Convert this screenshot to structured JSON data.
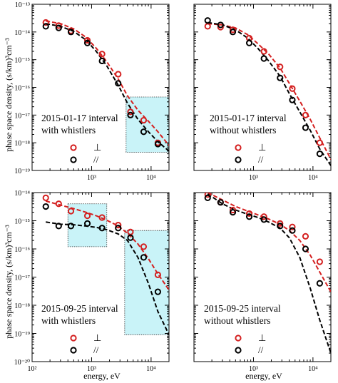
{
  "ylabel": "phase space density, (s/km)³cm⁻³",
  "xlabel": "energy, eV",
  "legend": {
    "perp": "⊥",
    "par": "//"
  },
  "colors": {
    "perp": "#d42020",
    "par": "#000000",
    "box": "#c9f3f8"
  },
  "chart_data": [
    {
      "type": "scatter",
      "annotation": [
        "2015-01-17 interval",
        "with whistlers"
      ],
      "xlim": [
        100,
        20000
      ],
      "ylim_exp": [
        -19,
        -13
      ],
      "xscale": "log",
      "yscale": "log",
      "x_ticks": [
        "10³",
        "10⁴"
      ],
      "y_ticks": [
        "10⁻¹⁴",
        "10⁻¹⁵",
        "10⁻¹⁶",
        "10⁻¹⁷",
        "10⁻¹⁸",
        "10⁻¹⁹"
      ],
      "y_top_tick": "10⁻¹³",
      "boxes": [
        {
          "x": [
            3800,
            20000
          ],
          "y": [
            4.5e-19,
            4.5e-17
          ]
        }
      ],
      "series": [
        {
          "key": "perp",
          "points": {
            "x": [
              170,
              280,
              450,
              850,
              1500,
              2800,
              4500,
              7500,
              13000
            ],
            "y": [
              2.2e-14,
              1.7e-14,
              1.1e-14,
              5e-15,
              1.6e-15,
              3e-16,
              1.3e-17,
              6.5e-18,
              1e-18
            ]
          },
          "fit": {
            "x": [
              170,
              300,
              500,
              800,
              1200,
              1800,
              2800,
              4000,
              6000,
              9000,
              13000,
              20000
            ],
            "y": [
              2.5e-14,
              2e-14,
              1.3e-14,
              6.5e-15,
              2.6e-15,
              8.5e-16,
              2e-16,
              5e-17,
              1.5e-17,
              6e-18,
              2.5e-18,
              8e-19
            ]
          }
        },
        {
          "key": "par",
          "points": {
            "x": [
              170,
              280,
              450,
              850,
              1500,
              2800,
              4500,
              7500,
              13000
            ],
            "y": [
              1.6e-14,
              1.4e-14,
              1e-14,
              4e-15,
              9e-16,
              1.4e-16,
              1e-17,
              2.5e-18,
              9e-19
            ]
          },
          "fit": {
            "x": [
              170,
              300,
              500,
              800,
              1200,
              1800,
              2800,
              4000,
              6000,
              9000,
              13000,
              20000
            ],
            "y": [
              2e-14,
              1.6e-14,
              1.05e-14,
              5.2e-15,
              2e-15,
              6e-16,
              1.2e-16,
              2.7e-17,
              7e-18,
              2.5e-18,
              1.1e-18,
              5e-19
            ]
          }
        }
      ]
    },
    {
      "type": "scatter",
      "annotation": [
        "2015-01-17 interval",
        "without whistlers"
      ],
      "xlim": [
        100,
        20000
      ],
      "ylim_exp": [
        -19,
        -13
      ],
      "xscale": "log",
      "yscale": "log",
      "x_ticks": [
        "10³",
        "10⁴"
      ],
      "y_ticks": [],
      "boxes": [],
      "series": [
        {
          "key": "perp",
          "points": {
            "x": [
              170,
              280,
              450,
              850,
              1500,
              2800,
              4500,
              7500,
              13000
            ],
            "y": [
              1.6e-14,
              1.5e-14,
              1.2e-14,
              6e-15,
              2e-15,
              5.5e-16,
              9e-17,
              1e-17,
              1e-18
            ]
          },
          "fit": {
            "x": [
              170,
              300,
              500,
              800,
              1200,
              1800,
              2800,
              4000,
              6000,
              9000,
              13000,
              20000
            ],
            "y": [
              2e-14,
              1.8e-14,
              1.4e-14,
              8e-15,
              3.7e-15,
              1.6e-15,
              5e-16,
              1.4e-16,
              3.2e-17,
              7e-18,
              1.5e-18,
              2.5e-19
            ]
          }
        },
        {
          "key": "par",
          "points": {
            "x": [
              170,
              280,
              450,
              850,
              1500,
              2800,
              4500,
              7500,
              13000
            ],
            "y": [
              2.6e-14,
              1.8e-14,
              1e-14,
              4e-15,
              1.1e-15,
              2.2e-16,
              3.5e-17,
              3.5e-18,
              4e-19
            ]
          },
          "fit": {
            "x": [
              170,
              300,
              500,
              800,
              1200,
              1800,
              2800,
              4000,
              6000,
              9000,
              13000,
              20000
            ],
            "y": [
              2.2e-14,
              1.8e-14,
              1.2e-14,
              6e-15,
              2.5e-15,
              9e-16,
              2.5e-16,
              6e-17,
              1.3e-17,
              2.8e-18,
              6e-19,
              1.5e-19
            ]
          }
        }
      ]
    },
    {
      "type": "scatter",
      "annotation": [
        "2015-09-25 interval",
        "with whistlers"
      ],
      "xlim": [
        100,
        20000
      ],
      "ylim_exp": [
        -20,
        -14
      ],
      "xscale": "log",
      "yscale": "log",
      "x_ticks": [
        "10²",
        "10³",
        "10⁴"
      ],
      "y_ticks": [
        "10⁻¹⁴",
        "10⁻¹⁵",
        "10⁻¹⁶",
        "10⁻¹⁷",
        "10⁻¹⁸",
        "10⁻¹⁹",
        "10⁻²⁰"
      ],
      "boxes": [
        {
          "x": [
            400,
            1800
          ],
          "y": [
            1.2e-16,
            4e-15
          ]
        },
        {
          "x": [
            3600,
            20000
          ],
          "y": [
            9e-20,
            4.5e-16
          ]
        }
      ],
      "series": [
        {
          "key": "perp",
          "points": {
            "x": [
              170,
              280,
              450,
              850,
              1500,
              2800,
              4500,
              7500,
              13000
            ],
            "y": [
              6.5e-15,
              4e-15,
              2.2e-15,
              1.5e-15,
              1.3e-15,
              7e-16,
              4e-16,
              1.2e-16,
              1.2e-17
            ]
          },
          "fit": {
            "x": [
              170,
              300,
              500,
              800,
              1200,
              1800,
              2800,
              4000,
              6000,
              9000,
              13000,
              20000
            ],
            "y": [
              5e-15,
              3.6e-15,
              2.7e-15,
              2e-15,
              1.5e-15,
              1.05e-15,
              6.5e-16,
              3.6e-16,
              1.5e-16,
              4.5e-17,
              1.3e-17,
              3.5e-18
            ]
          }
        },
        {
          "key": "par",
          "points": {
            "x": [
              170,
              280,
              450,
              850,
              1500,
              2800,
              4500,
              7500,
              13000
            ],
            "y": [
              3.2e-15,
              6.5e-16,
              6.5e-16,
              8e-16,
              5.5e-16,
              5.5e-16,
              2.5e-16,
              5e-17,
              3e-18
            ]
          },
          "fit": {
            "x": [
              170,
              300,
              500,
              800,
              1200,
              1800,
              2800,
              4000,
              6000,
              9000,
              13000,
              20000
            ],
            "y": [
              9e-16,
              7.5e-16,
              7.2e-16,
              6.5e-16,
              5.8e-16,
              4.8e-16,
              3.4e-16,
              2e-16,
              5e-17,
              6e-18,
              6e-19,
              9e-20
            ]
          }
        }
      ]
    },
    {
      "type": "scatter",
      "annotation": [
        "2015-09-25 interval",
        "without whistlers"
      ],
      "xlim": [
        100,
        20000
      ],
      "ylim_exp": [
        -20,
        -14
      ],
      "xscale": "log",
      "yscale": "log",
      "x_ticks": [
        "10³",
        "10⁴"
      ],
      "y_ticks": [],
      "boxes": [],
      "series": [
        {
          "key": "perp",
          "points": {
            "x": [
              170,
              280,
              450,
              850,
              1500,
              2800,
              4500,
              7500,
              13000
            ],
            "y": [
              8.5e-15,
              4.5e-15,
              2.4e-15,
              1.8e-15,
              1.4e-15,
              8e-16,
              6e-16,
              2.8e-16,
              3.5e-17
            ]
          },
          "fit": {
            "x": [
              170,
              300,
              500,
              800,
              1200,
              1800,
              2800,
              4000,
              6000,
              9000,
              13000,
              20000
            ],
            "y": [
              1e-14,
              5.5e-15,
              3.2e-15,
              2.2e-15,
              1.6e-15,
              1.15e-15,
              7.5e-16,
              4.5e-16,
              2e-16,
              6e-17,
              1.5e-17,
              3e-18
            ]
          }
        },
        {
          "key": "par",
          "points": {
            "x": [
              170,
              280,
              450,
              850,
              1500,
              2800,
              4500,
              7500,
              13000
            ],
            "y": [
              6.5e-15,
              4.5e-15,
              2e-15,
              1.4e-15,
              1.1e-15,
              6.5e-16,
              4.5e-16,
              1e-16,
              6e-18
            ]
          },
          "fit": {
            "x": [
              170,
              300,
              500,
              800,
              1200,
              1800,
              2800,
              4000,
              6000,
              9000,
              13000,
              20000
            ],
            "y": [
              9e-15,
              4e-15,
              2.4e-15,
              1.7e-15,
              1.3e-15,
              9e-16,
              5.5e-16,
              2.5e-16,
              5e-17,
              4e-18,
              3e-19,
              2e-20
            ]
          }
        }
      ]
    }
  ]
}
